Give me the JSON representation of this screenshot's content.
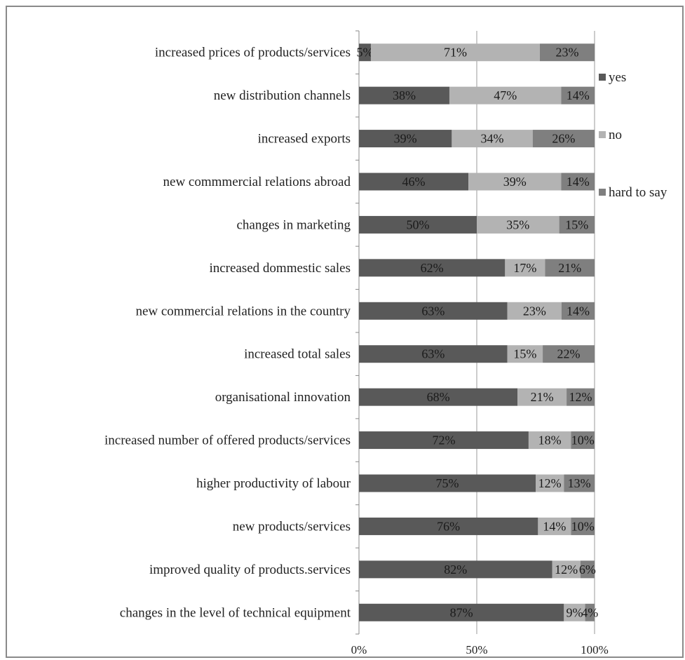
{
  "chart_data": {
    "type": "bar",
    "orientation": "horizontal",
    "stacked": "percent",
    "categories": [
      "increased prices of products/services",
      "new distribution channels",
      "increased exports",
      "new commmercial relations abroad",
      "changes in marketing",
      "increased dommestic sales",
      "new commercial relations in the country",
      "increased total sales",
      "organisational innovation",
      "increased number of offered products/services",
      "higher productivity of labour",
      "new products/services",
      "improved quality of products.services",
      "changes in the level of technical equipment"
    ],
    "series": [
      {
        "name": "yes",
        "color": "#595959",
        "values": [
          5,
          38,
          39,
          46,
          50,
          62,
          63,
          63,
          68,
          72,
          75,
          76,
          82,
          87
        ],
        "labels": [
          "5%",
          "38%",
          "39%",
          "46%",
          "50%",
          "62%",
          "63%",
          "63%",
          "68%",
          "72%",
          "75%",
          "76%",
          "82%",
          "87%"
        ]
      },
      {
        "name": "no",
        "color": "#b3b3b3",
        "values": [
          71,
          47,
          34,
          39,
          35,
          17,
          23,
          15,
          21,
          18,
          12,
          14,
          12,
          9
        ],
        "labels": [
          "71%",
          "47%",
          "34%",
          "39%",
          "35%",
          "17%",
          "23%",
          "15%",
          "21%",
          "18%",
          "12%",
          "14%",
          "12%",
          "9%"
        ]
      },
      {
        "name": "hard to say",
        "color": "#7f7f7f",
        "values": [
          23,
          14,
          26,
          14,
          15,
          21,
          14,
          22,
          12,
          10,
          13,
          10,
          6,
          4
        ],
        "labels": [
          "23%",
          "14%",
          "26%",
          "14%",
          "15%",
          "21%",
          "14%",
          "22%",
          "12%",
          "10%",
          "13%",
          "10%",
          "6%",
          "4%"
        ]
      }
    ],
    "xlim": [
      0,
      100
    ],
    "xticks": [
      "0%",
      "50%",
      "100%"
    ],
    "grid": "vertical",
    "legend": "right",
    "title": "",
    "xlabel": "",
    "ylabel": ""
  }
}
